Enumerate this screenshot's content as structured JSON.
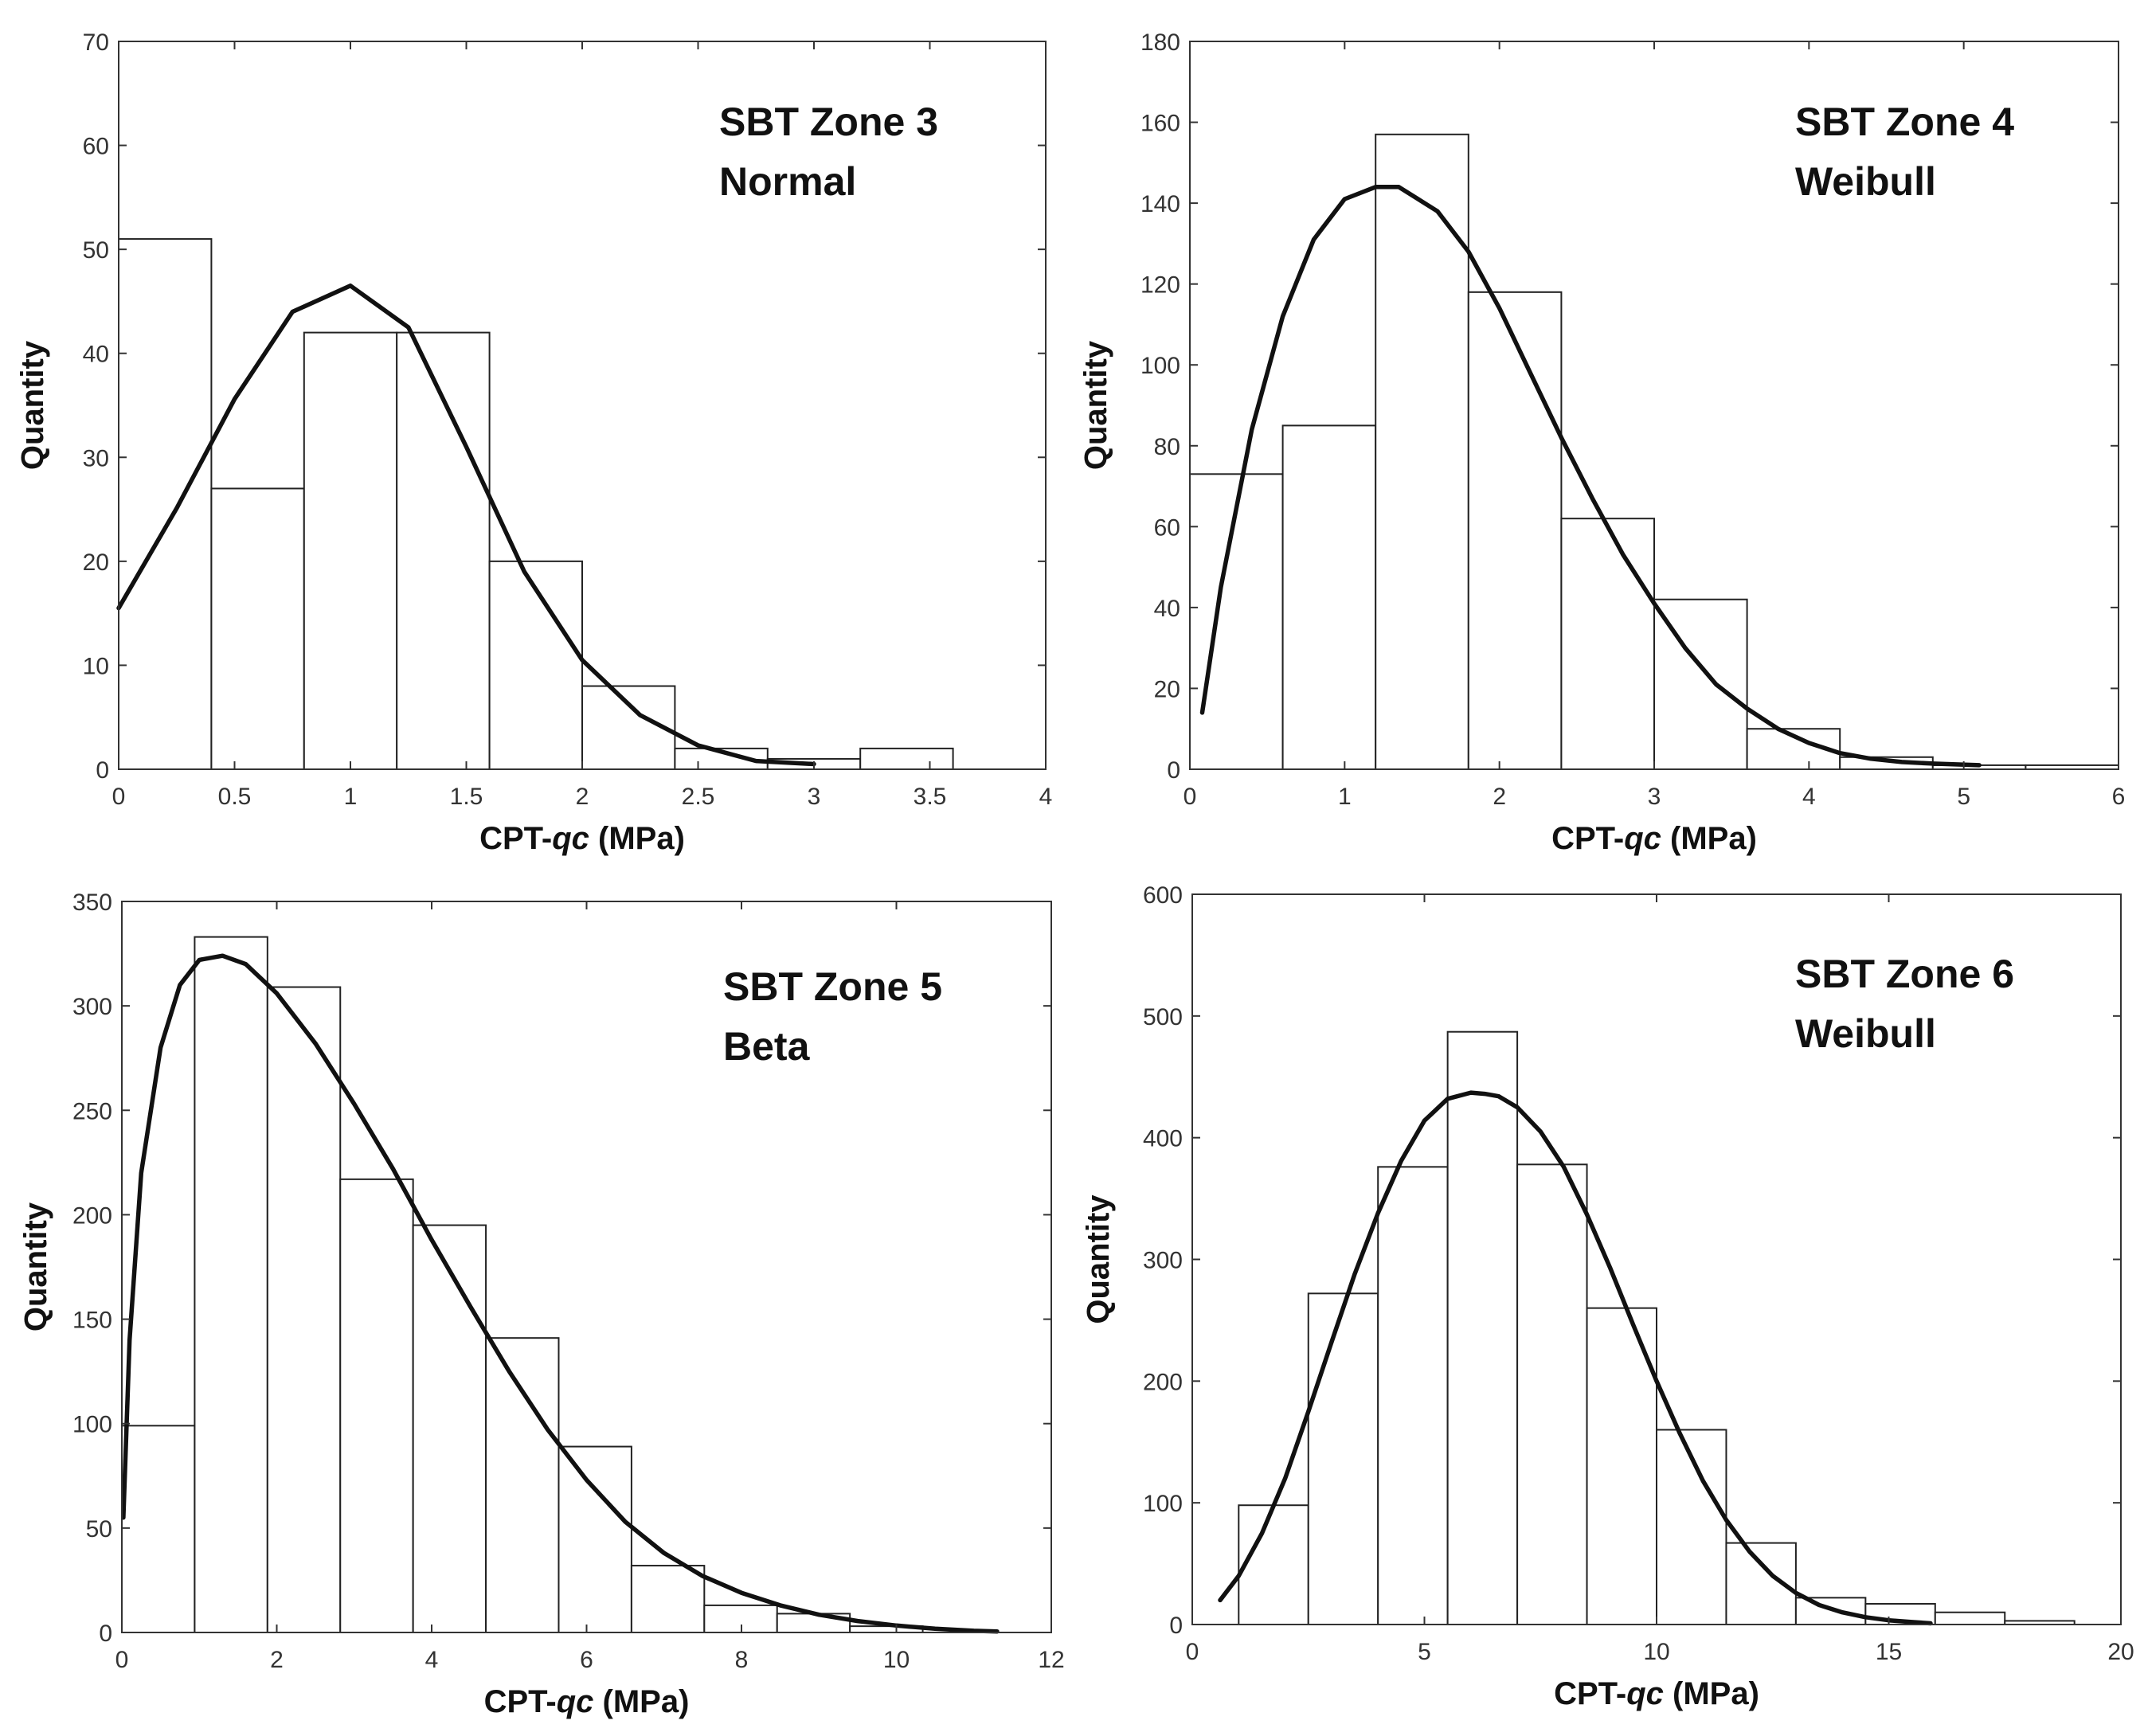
{
  "chart_data": [
    {
      "type": "bar",
      "title": "SBT Zone 3",
      "subtitle": "Normal",
      "xlabel_prefix": "CPT-",
      "xlabel_italic": "qc",
      "xlabel_suffix": " (MPa)",
      "ylabel": "Quantity",
      "xlim": [
        0,
        4
      ],
      "ylim": [
        0,
        70
      ],
      "xticks": [
        0,
        0.5,
        1,
        1.5,
        2,
        2.5,
        3,
        3.5,
        4
      ],
      "xtick_labels": [
        "0",
        "0.5",
        "1",
        "1.5",
        "2",
        "2.5",
        "3",
        "3.5",
        "4"
      ],
      "yticks": [
        0,
        10,
        20,
        30,
        40,
        50,
        60,
        70
      ],
      "ytick_labels": [
        "0",
        "10",
        "20",
        "30",
        "40",
        "50",
        "60",
        "70"
      ],
      "bin_edges": [
        0,
        0.4,
        0.8,
        1.2,
        1.6,
        2.0,
        2.4,
        2.8,
        3.2,
        3.6
      ],
      "values": [
        51,
        27,
        42,
        42,
        20,
        8,
        2,
        1,
        2
      ],
      "fit": {
        "distribution": "Normal",
        "x": [
          0,
          0.25,
          0.5,
          0.75,
          1.0,
          1.25,
          1.5,
          1.75,
          2.0,
          2.25,
          2.5,
          2.75,
          3.0
        ],
        "y": [
          15.5,
          25.1,
          35.6,
          44.0,
          46.5,
          42.5,
          31.0,
          19.0,
          10.5,
          5.2,
          2.3,
          0.8,
          0.5
        ]
      }
    },
    {
      "type": "bar",
      "title": "SBT Zone 4",
      "subtitle": "Weibull",
      "xlabel_prefix": "CPT-",
      "xlabel_italic": "qc",
      "xlabel_suffix": " (MPa)",
      "ylabel": "Quantity",
      "xlim": [
        0,
        6
      ],
      "ylim": [
        0,
        180
      ],
      "xticks": [
        0,
        1,
        2,
        3,
        4,
        5,
        6
      ],
      "xtick_labels": [
        "0",
        "1",
        "2",
        "3",
        "4",
        "5",
        "6"
      ],
      "yticks": [
        0,
        20,
        40,
        60,
        80,
        100,
        120,
        140,
        160,
        180
      ],
      "ytick_labels": [
        "0",
        "20",
        "40",
        "60",
        "80",
        "100",
        "120",
        "140",
        "160",
        "180"
      ],
      "bin_edges": [
        0,
        0.6,
        1.2,
        1.8,
        2.4,
        3.0,
        3.6,
        4.2,
        4.8,
        5.4,
        6.0
      ],
      "values": [
        73,
        85,
        157,
        118,
        62,
        42,
        10,
        3,
        1,
        1
      ],
      "fit": {
        "distribution": "Weibull",
        "x": [
          0.08,
          0.2,
          0.4,
          0.6,
          0.8,
          1.0,
          1.2,
          1.35,
          1.6,
          1.8,
          2.0,
          2.2,
          2.4,
          2.6,
          2.8,
          3.0,
          3.2,
          3.4,
          3.6,
          3.8,
          4.0,
          4.2,
          4.4,
          4.6,
          4.8,
          5.1
        ],
        "y": [
          14,
          45,
          84,
          112,
          131,
          141,
          144,
          144,
          138,
          128,
          114,
          98,
          82,
          67,
          53,
          41,
          30,
          21,
          15,
          10,
          6.5,
          4,
          2.6,
          1.8,
          1.4,
          1.0
        ]
      }
    },
    {
      "type": "bar",
      "title": "SBT Zone 5",
      "subtitle": "Beta",
      "xlabel_prefix": "CPT-",
      "xlabel_italic": "qc",
      "xlabel_suffix": " (MPa)",
      "ylabel": "Quantity",
      "xlim": [
        0,
        12
      ],
      "ylim": [
        0,
        350
      ],
      "xticks": [
        0,
        2,
        4,
        6,
        8,
        10,
        12
      ],
      "xtick_labels": [
        "0",
        "2",
        "4",
        "6",
        "8",
        "10",
        "12"
      ],
      "yticks": [
        0,
        50,
        100,
        150,
        200,
        250,
        300,
        350
      ],
      "ytick_labels": [
        "0",
        "50",
        "100",
        "150",
        "200",
        "250",
        "300",
        "350"
      ],
      "bin_edges": [
        0,
        0.94,
        1.88,
        2.82,
        3.76,
        4.7,
        5.64,
        6.58,
        7.52,
        8.46,
        9.4,
        10.34
      ],
      "values": [
        99,
        333,
        309,
        217,
        195,
        141,
        89,
        32,
        13,
        9,
        3
      ],
      "fit": {
        "distribution": "Beta",
        "x": [
          0.02,
          0.1,
          0.25,
          0.5,
          0.75,
          1.0,
          1.3,
          1.6,
          2.0,
          2.5,
          3.0,
          3.5,
          4.0,
          4.5,
          5.0,
          5.5,
          6.0,
          6.5,
          7.0,
          7.5,
          8.0,
          8.5,
          9.0,
          9.5,
          10.0,
          10.5,
          11.0,
          11.3
        ],
        "y": [
          55,
          140,
          220,
          280,
          310,
          322,
          324,
          320,
          306,
          282,
          253,
          222,
          188,
          156,
          125,
          97,
          73,
          53,
          38,
          27,
          19,
          13,
          8.5,
          5.5,
          3.3,
          1.8,
          0.8,
          0.5
        ]
      }
    },
    {
      "type": "bar",
      "title": "SBT Zone 6",
      "subtitle": "Weibull",
      "xlabel_prefix": "CPT-",
      "xlabel_italic": "qc",
      "xlabel_suffix": " (MPa)",
      "ylabel": "Quantity",
      "xlim": [
        0,
        20
      ],
      "ylim": [
        0,
        600
      ],
      "xticks": [
        0,
        5,
        10,
        15,
        20
      ],
      "xtick_labels": [
        "0",
        "5",
        "10",
        "15",
        "20"
      ],
      "yticks": [
        0,
        100,
        200,
        300,
        400,
        500,
        600
      ],
      "ytick_labels": [
        "0",
        "100",
        "200",
        "300",
        "400",
        "500",
        "600"
      ],
      "bin_edges": [
        1.0,
        2.5,
        4.0,
        5.5,
        7.0,
        8.5,
        10.0,
        11.5,
        13.0,
        14.5,
        16.0,
        17.5,
        19.0
      ],
      "values": [
        98,
        272,
        376,
        487,
        378,
        260,
        160,
        67,
        22,
        17,
        10,
        3
      ],
      "fit": {
        "distribution": "Weibull",
        "x": [
          0.6,
          1.0,
          1.5,
          2.0,
          2.5,
          3.0,
          3.5,
          4.0,
          4.5,
          5.0,
          5.5,
          6.0,
          6.3,
          6.6,
          7.0,
          7.5,
          8.0,
          8.5,
          9.0,
          9.5,
          10.0,
          10.5,
          11.0,
          11.5,
          12.0,
          12.5,
          13.0,
          13.5,
          14.0,
          14.5,
          15.0,
          15.5,
          15.9
        ],
        "y": [
          20,
          40,
          75,
          120,
          175,
          232,
          288,
          338,
          381,
          414,
          432,
          437,
          436,
          434,
          425,
          405,
          376,
          337,
          293,
          246,
          200,
          157,
          118,
          86,
          60,
          40,
          26,
          16,
          10,
          6,
          3.5,
          2,
          1
        ]
      }
    }
  ]
}
